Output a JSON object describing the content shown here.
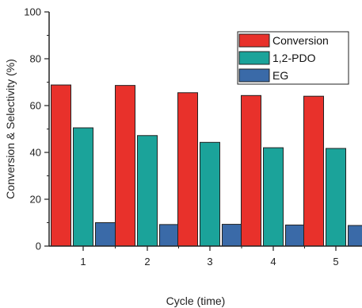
{
  "chart_data": {
    "type": "bar",
    "categories": [
      "1",
      "2",
      "3",
      "4",
      "5"
    ],
    "series": [
      {
        "name": "Conversion",
        "color": "#e8312b",
        "values": [
          68.8,
          68.6,
          65.5,
          64.3,
          64.0
        ]
      },
      {
        "name": "1,2-PDO",
        "color": "#1ba39a",
        "values": [
          50.5,
          47.2,
          44.3,
          42.0,
          41.7
        ]
      },
      {
        "name": "EG",
        "color": "#3a6aa8",
        "values": [
          10.0,
          9.2,
          9.3,
          9.0,
          8.8
        ]
      }
    ],
    "xlabel": "Cycle (time)",
    "ylabel": "Conversion & Selectivity (%)",
    "ylim": [
      0,
      100
    ],
    "yticks": [
      "0",
      "20",
      "40",
      "60",
      "80",
      "100"
    ],
    "legend_position": "top-right",
    "grid": false
  }
}
